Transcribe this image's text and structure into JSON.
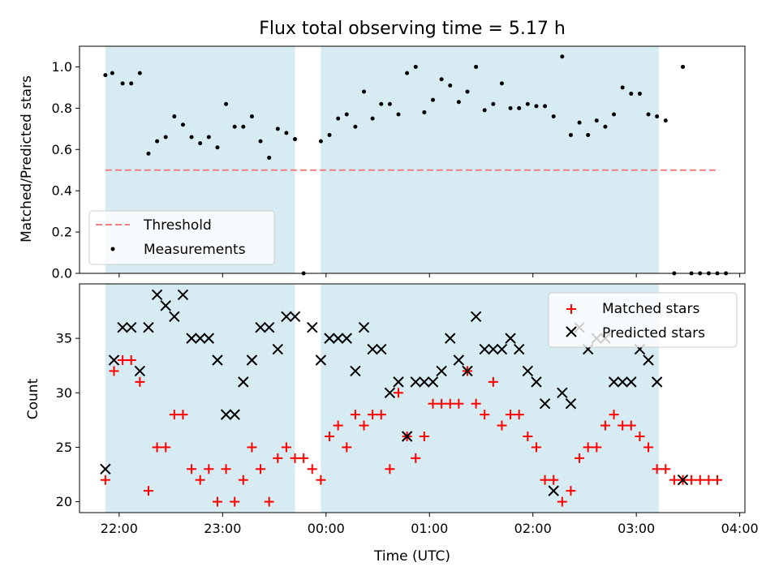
{
  "chart_data": [
    {
      "type": "scatter",
      "title": "Flux total observing time = 5.17 h",
      "ylabel": "Matched/Predicted stars",
      "xlim": [
        "21:37",
        "04:03"
      ],
      "ylim": [
        0,
        1.1
      ],
      "yticks": [
        "0.0",
        "0.2",
        "0.4",
        "0.6",
        "0.8",
        "1.0"
      ],
      "shaded_intervals": [
        [
          "21:52",
          "23:42"
        ],
        [
          "23:57",
          "03:13"
        ]
      ],
      "threshold": {
        "name": "Threshold",
        "value": 0.5,
        "x_range": [
          "21:52",
          "03:48"
        ],
        "color": "#f08080"
      },
      "series": [
        {
          "name": "Measurements",
          "color": "#000000",
          "points": [
            [
              "21:52",
              0.96
            ],
            [
              "21:56",
              0.97
            ],
            [
              "22:02",
              0.92
            ],
            [
              "22:07",
              0.92
            ],
            [
              "22:12",
              0.97
            ],
            [
              "22:17",
              0.58
            ],
            [
              "22:22",
              0.64
            ],
            [
              "22:27",
              0.66
            ],
            [
              "22:32",
              0.76
            ],
            [
              "22:37",
              0.72
            ],
            [
              "22:42",
              0.66
            ],
            [
              "22:47",
              0.63
            ],
            [
              "22:52",
              0.66
            ],
            [
              "22:57",
              0.61
            ],
            [
              "23:02",
              0.82
            ],
            [
              "23:07",
              0.71
            ],
            [
              "23:12",
              0.71
            ],
            [
              "23:17",
              0.76
            ],
            [
              "23:22",
              0.64
            ],
            [
              "23:27",
              0.56
            ],
            [
              "23:32",
              0.7
            ],
            [
              "23:37",
              0.68
            ],
            [
              "23:42",
              0.65
            ],
            [
              "23:47",
              0.0
            ],
            [
              "23:57",
              0.64
            ],
            [
              "00:02",
              0.67
            ],
            [
              "00:07",
              0.75
            ],
            [
              "00:12",
              0.77
            ],
            [
              "00:17",
              0.71
            ],
            [
              "00:22",
              0.88
            ],
            [
              "00:27",
              0.75
            ],
            [
              "00:32",
              0.82
            ],
            [
              "00:37",
              0.82
            ],
            [
              "00:42",
              0.77
            ],
            [
              "00:47",
              0.97
            ],
            [
              "00:52",
              1.0
            ],
            [
              "00:57",
              0.78
            ],
            [
              "01:02",
              0.84
            ],
            [
              "01:07",
              0.94
            ],
            [
              "01:12",
              0.91
            ],
            [
              "01:17",
              0.83
            ],
            [
              "01:22",
              0.88
            ],
            [
              "01:27",
              1.0
            ],
            [
              "01:32",
              0.79
            ],
            [
              "01:37",
              0.82
            ],
            [
              "01:42",
              0.92
            ],
            [
              "01:47",
              0.8
            ],
            [
              "01:52",
              0.8
            ],
            [
              "01:57",
              0.82
            ],
            [
              "02:02",
              0.81
            ],
            [
              "02:07",
              0.81
            ],
            [
              "02:12",
              0.76
            ],
            [
              "02:17",
              1.05
            ],
            [
              "02:22",
              0.67
            ],
            [
              "02:27",
              0.73
            ],
            [
              "02:32",
              0.67
            ],
            [
              "02:37",
              0.74
            ],
            [
              "02:42",
              0.71
            ],
            [
              "02:47",
              0.77
            ],
            [
              "02:52",
              0.9
            ],
            [
              "02:57",
              0.87
            ],
            [
              "03:02",
              0.87
            ],
            [
              "03:07",
              0.77
            ],
            [
              "03:12",
              0.76
            ],
            [
              "03:17",
              0.74
            ],
            [
              "03:22",
              0.0
            ],
            [
              "03:27",
              1.0
            ],
            [
              "03:32",
              0.0
            ],
            [
              "03:37",
              0.0
            ],
            [
              "03:42",
              0.0
            ],
            [
              "03:47",
              0.0
            ],
            [
              "03:52",
              0.0
            ]
          ]
        }
      ],
      "legend": "lower-left"
    },
    {
      "type": "scatter",
      "xlabel": "Time (UTC)",
      "ylabel": "Count",
      "xlim": [
        "21:37",
        "04:03"
      ],
      "ylim": [
        19,
        40
      ],
      "yticks": [
        "20",
        "25",
        "30",
        "35"
      ],
      "xticks": [
        "22:00",
        "23:00",
        "00:00",
        "01:00",
        "02:00",
        "03:00",
        "04:00"
      ],
      "shaded_intervals": [
        [
          "21:52",
          "23:42"
        ],
        [
          "23:57",
          "03:13"
        ]
      ],
      "series": [
        {
          "name": "Matched stars",
          "marker": "plus",
          "color": "#ff0000",
          "points": [
            [
              "21:52",
              22
            ],
            [
              "21:57",
              32
            ],
            [
              "22:02",
              33
            ],
            [
              "22:07",
              33
            ],
            [
              "22:12",
              31
            ],
            [
              "22:17",
              21
            ],
            [
              "22:22",
              25
            ],
            [
              "22:27",
              25
            ],
            [
              "22:32",
              28
            ],
            [
              "22:37",
              28
            ],
            [
              "22:42",
              23
            ],
            [
              "22:47",
              22
            ],
            [
              "22:52",
              23
            ],
            [
              "22:57",
              20
            ],
            [
              "23:02",
              23
            ],
            [
              "23:07",
              20
            ],
            [
              "23:12",
              22
            ],
            [
              "23:17",
              25
            ],
            [
              "23:22",
              23
            ],
            [
              "23:27",
              20
            ],
            [
              "23:32",
              24
            ],
            [
              "23:37",
              25
            ],
            [
              "23:42",
              24
            ],
            [
              "23:47",
              24
            ],
            [
              "23:52",
              23
            ],
            [
              "23:57",
              22
            ],
            [
              "00:02",
              26
            ],
            [
              "00:07",
              27
            ],
            [
              "00:12",
              25
            ],
            [
              "00:17",
              28
            ],
            [
              "00:22",
              27
            ],
            [
              "00:27",
              28
            ],
            [
              "00:32",
              28
            ],
            [
              "00:37",
              23
            ],
            [
              "00:42",
              30
            ],
            [
              "00:47",
              26
            ],
            [
              "00:52",
              24
            ],
            [
              "00:57",
              26
            ],
            [
              "01:02",
              29
            ],
            [
              "01:07",
              29
            ],
            [
              "01:12",
              29
            ],
            [
              "01:17",
              29
            ],
            [
              "01:22",
              32
            ],
            [
              "01:27",
              29
            ],
            [
              "01:32",
              28
            ],
            [
              "01:37",
              31
            ],
            [
              "01:42",
              27
            ],
            [
              "01:47",
              28
            ],
            [
              "01:52",
              28
            ],
            [
              "01:57",
              26
            ],
            [
              "02:02",
              25
            ],
            [
              "02:07",
              22
            ],
            [
              "02:12",
              22
            ],
            [
              "02:17",
              20
            ],
            [
              "02:22",
              21
            ],
            [
              "02:27",
              24
            ],
            [
              "02:32",
              25
            ],
            [
              "02:37",
              25
            ],
            [
              "02:42",
              27
            ],
            [
              "02:47",
              28
            ],
            [
              "02:52",
              27
            ],
            [
              "02:57",
              27
            ],
            [
              "03:02",
              26
            ],
            [
              "03:07",
              25
            ],
            [
              "03:12",
              23
            ],
            [
              "03:17",
              23
            ],
            [
              "03:22",
              22
            ],
            [
              "03:27",
              22
            ],
            [
              "03:32",
              22
            ],
            [
              "03:37",
              22
            ],
            [
              "03:42",
              22
            ],
            [
              "03:47",
              22
            ]
          ]
        },
        {
          "name": "Predicted stars",
          "marker": "x",
          "color": "#000000",
          "points": [
            [
              "21:52",
              23
            ],
            [
              "21:57",
              33
            ],
            [
              "22:02",
              36
            ],
            [
              "22:07",
              36
            ],
            [
              "22:12",
              32
            ],
            [
              "22:17",
              36
            ],
            [
              "22:22",
              39
            ],
            [
              "22:27",
              38
            ],
            [
              "22:32",
              37
            ],
            [
              "22:37",
              39
            ],
            [
              "22:42",
              35
            ],
            [
              "22:47",
              35
            ],
            [
              "22:52",
              35
            ],
            [
              "22:57",
              33
            ],
            [
              "23:02",
              28
            ],
            [
              "23:07",
              28
            ],
            [
              "23:12",
              31
            ],
            [
              "23:17",
              33
            ],
            [
              "23:22",
              36
            ],
            [
              "23:27",
              36
            ],
            [
              "23:32",
              34
            ],
            [
              "23:37",
              37
            ],
            [
              "23:42",
              37
            ],
            [
              "23:52",
              36
            ],
            [
              "23:57",
              33
            ],
            [
              "00:02",
              35
            ],
            [
              "00:07",
              35
            ],
            [
              "00:12",
              35
            ],
            [
              "00:17",
              32
            ],
            [
              "00:22",
              36
            ],
            [
              "00:27",
              34
            ],
            [
              "00:32",
              34
            ],
            [
              "00:37",
              30
            ],
            [
              "00:42",
              31
            ],
            [
              "00:47",
              26
            ],
            [
              "00:52",
              31
            ],
            [
              "00:57",
              31
            ],
            [
              "01:02",
              31
            ],
            [
              "01:07",
              32
            ],
            [
              "01:12",
              35
            ],
            [
              "01:17",
              33
            ],
            [
              "01:22",
              32
            ],
            [
              "01:27",
              37
            ],
            [
              "01:32",
              34
            ],
            [
              "01:37",
              34
            ],
            [
              "01:42",
              34
            ],
            [
              "01:47",
              35
            ],
            [
              "01:52",
              34
            ],
            [
              "01:57",
              32
            ],
            [
              "02:02",
              31
            ],
            [
              "02:07",
              29
            ],
            [
              "02:12",
              21
            ],
            [
              "02:17",
              30
            ],
            [
              "02:22",
              29
            ],
            [
              "02:27",
              36
            ],
            [
              "02:32",
              34
            ],
            [
              "02:37",
              35
            ],
            [
              "02:42",
              35
            ],
            [
              "02:47",
              31
            ],
            [
              "02:52",
              31
            ],
            [
              "02:57",
              31
            ],
            [
              "03:02",
              34
            ],
            [
              "03:07",
              33
            ],
            [
              "03:12",
              31
            ],
            [
              "03:27",
              22
            ]
          ]
        }
      ],
      "legend": "top-right"
    }
  ]
}
